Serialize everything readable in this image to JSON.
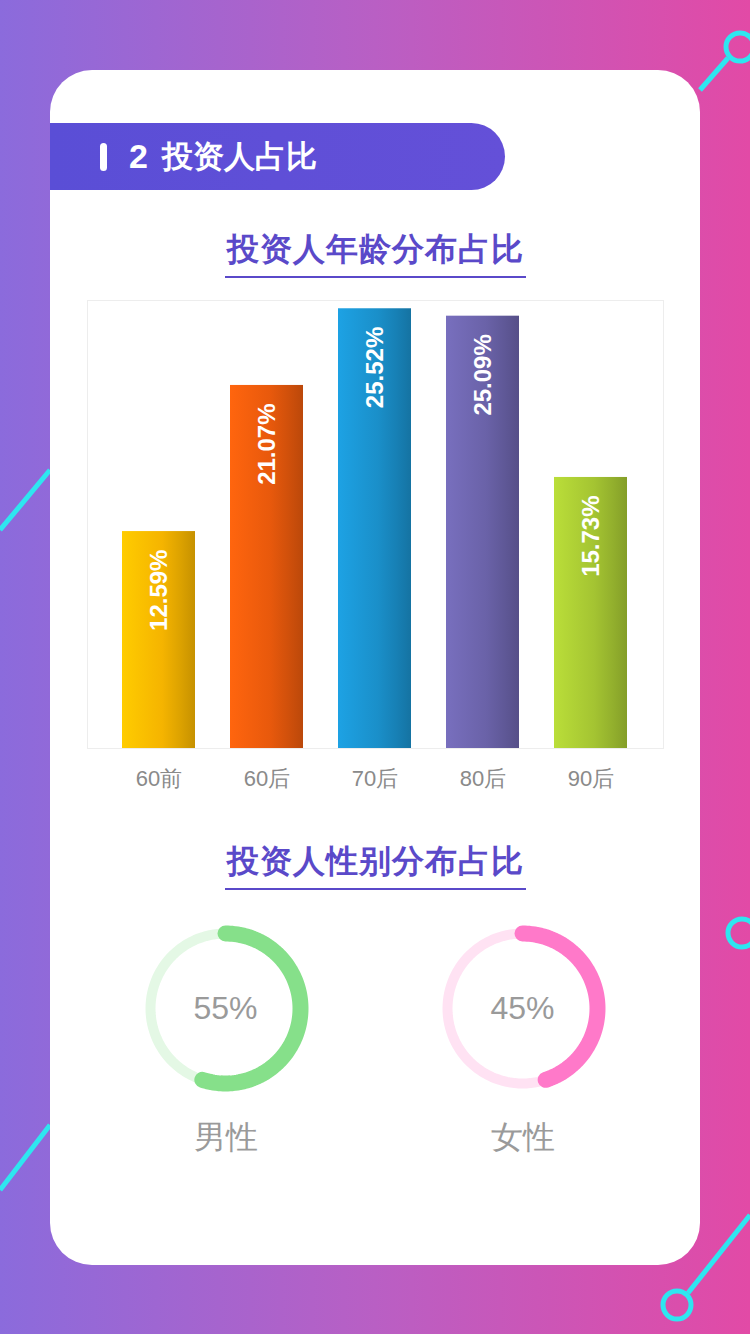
{
  "header": {
    "number": "2",
    "title": "投资人占比"
  },
  "chart_data": [
    {
      "type": "bar",
      "title": "投资人年龄分布占比",
      "categories": [
        "60前",
        "60后",
        "70后",
        "80后",
        "90后"
      ],
      "values": [
        12.59,
        21.07,
        25.52,
        25.09,
        15.73
      ],
      "value_labels": [
        "12.59%",
        "21.07%",
        "25.52%",
        "25.09%",
        "15.73%"
      ],
      "colors": [
        "#f5b400",
        "#e8590c",
        "#1a8fc9",
        "#6a62a8",
        "#a4c432"
      ],
      "ylim": [
        0,
        26
      ],
      "yticks": [],
      "data_labels": true,
      "tick_labels": "x",
      "grid": false
    },
    {
      "type": "donut",
      "title": "投资人性别分布占比",
      "categories": [
        "男性",
        "女性"
      ],
      "values": [
        55,
        45
      ],
      "value_labels": [
        "55%",
        "45%"
      ],
      "colors": [
        "#86e08a",
        "#ff79c9"
      ],
      "data_labels": true
    }
  ]
}
